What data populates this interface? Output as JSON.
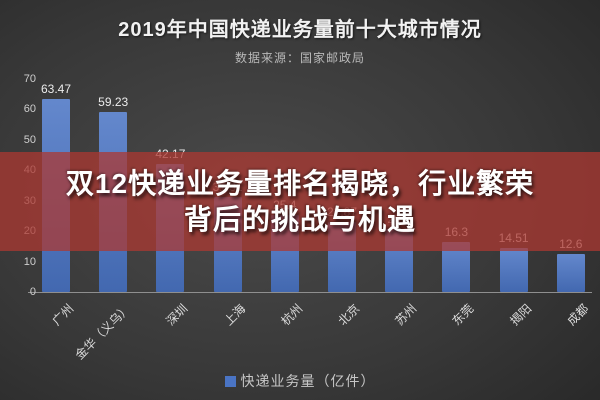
{
  "header": {
    "title": "2019年中国快递业务量前十大城市情况",
    "source": "数据来源：国家邮政局"
  },
  "overlay": {
    "line1": "双12快递业务量排名揭晓，行业繁荣",
    "line2": "背后的挑战与机遇"
  },
  "legend": {
    "label": "快递业务量（亿件）"
  },
  "colors": {
    "bar": "#4a74c4",
    "overlay_band": "rgba(172,56,50,0.75)",
    "legend_swatch": "#4a74c4"
  },
  "chart_data": {
    "type": "bar",
    "title": "2019年中国快递业务量前十大城市情况",
    "subtitle": "数据来源：国家邮政局",
    "categories": [
      "广州",
      "金华（义乌）",
      "深圳",
      "上海",
      "杭州",
      "北京",
      "苏州",
      "东莞",
      "揭阳",
      "成都"
    ],
    "series": [
      {
        "name": "快递业务量（亿件）",
        "values": [
          63.47,
          59.23,
          42.17,
          31.31,
          25.4,
          22.87,
          20.7,
          16.3,
          14.51,
          12.6
        ]
      }
    ],
    "value_labels": [
      "63.47",
      "59.23",
      "42.17",
      "31.31",
      "25.4",
      "22.87",
      "20.7",
      "16.3",
      "14.51",
      "12.6"
    ],
    "xlabel": "",
    "ylabel": "",
    "ylim": [
      0,
      70
    ],
    "yticks": [
      0,
      10,
      20,
      30,
      40,
      50,
      60,
      70
    ],
    "grid": false,
    "legend_position": "bottom",
    "annotation_banner": "双12快递业务量排名揭晓，行业繁荣背后的挑战与机遇"
  }
}
